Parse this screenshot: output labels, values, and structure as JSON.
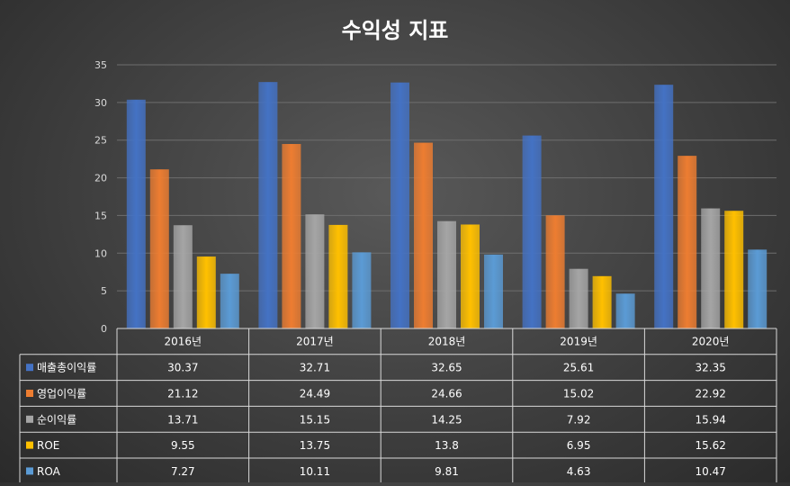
{
  "chart_data": {
    "type": "bar",
    "title": "수익성 지표",
    "categories": [
      "2016년",
      "2017년",
      "2018년",
      "2019년",
      "2020년"
    ],
    "ylim": [
      0,
      35
    ],
    "yticks": [
      0,
      5,
      10,
      15,
      20,
      25,
      30,
      35
    ],
    "grid": true,
    "legend": "data-table",
    "series": [
      {
        "name": "매출총이익률",
        "color": "#4472c4",
        "values": [
          30.37,
          32.71,
          32.65,
          25.61,
          32.35
        ],
        "labels": [
          "30.37",
          "32.71",
          "32.65",
          "25.61",
          "32.35"
        ]
      },
      {
        "name": "영업이익률",
        "color": "#ed7d31",
        "values": [
          21.12,
          24.49,
          24.66,
          15.02,
          22.92
        ],
        "labels": [
          "21.12",
          "24.49",
          "24.66",
          "15.02",
          "22.92"
        ]
      },
      {
        "name": "순이익률",
        "color": "#a5a5a5",
        "values": [
          13.71,
          15.15,
          14.25,
          7.92,
          15.94
        ],
        "labels": [
          "13.71",
          "15.15",
          "14.25",
          "7.92",
          "15.94"
        ]
      },
      {
        "name": "ROE",
        "color": "#ffc000",
        "values": [
          9.55,
          13.75,
          13.8,
          6.95,
          15.62
        ],
        "labels": [
          "9.55",
          "13.75",
          "13.8",
          "6.95",
          "15.62"
        ]
      },
      {
        "name": "ROA",
        "color": "#5b9bd5",
        "values": [
          7.27,
          10.11,
          9.81,
          4.63,
          10.47
        ],
        "labels": [
          "7.27",
          "10.11",
          "9.81",
          "4.63",
          "10.47"
        ]
      }
    ]
  }
}
